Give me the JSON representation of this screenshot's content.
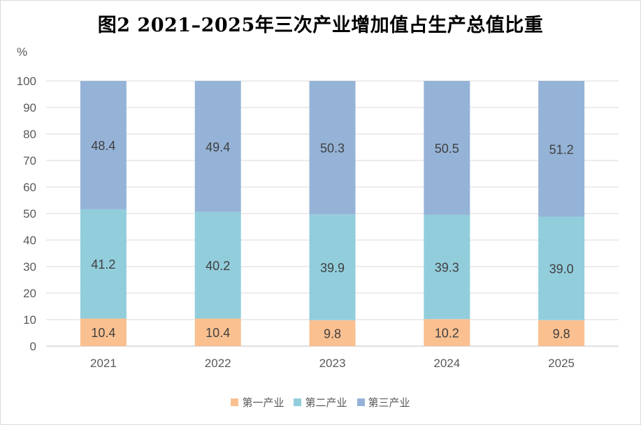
{
  "chart_data": {
    "type": "bar",
    "stacked": true,
    "title": "图2 2021–2025年三次产业增加值占生产总值比重",
    "ylabel": "%",
    "ylim": [
      0,
      100
    ],
    "yticks": [
      0,
      10,
      20,
      30,
      40,
      50,
      60,
      70,
      80,
      90,
      100
    ],
    "categories": [
      "2021",
      "2022",
      "2023",
      "2024",
      "2025"
    ],
    "series": [
      {
        "name": "第一产业",
        "color": "#fac090",
        "values": [
          10.4,
          10.4,
          9.8,
          10.2,
          9.8
        ],
        "labels": [
          "10.4",
          "10.4",
          "9.8",
          "10.2",
          "9.8"
        ]
      },
      {
        "name": "第二产业",
        "color": "#92cddc",
        "values": [
          41.2,
          40.2,
          39.9,
          39.3,
          39.0
        ],
        "labels": [
          "41.2",
          "40.2",
          "39.9",
          "39.3",
          "39.0"
        ]
      },
      {
        "name": "第三产业",
        "color": "#95b3d7",
        "values": [
          48.4,
          49.4,
          50.3,
          50.5,
          51.2
        ],
        "labels": [
          "48.4",
          "49.4",
          "50.3",
          "50.5",
          "51.2"
        ]
      }
    ],
    "grid": true,
    "legend_position": "bottom"
  }
}
